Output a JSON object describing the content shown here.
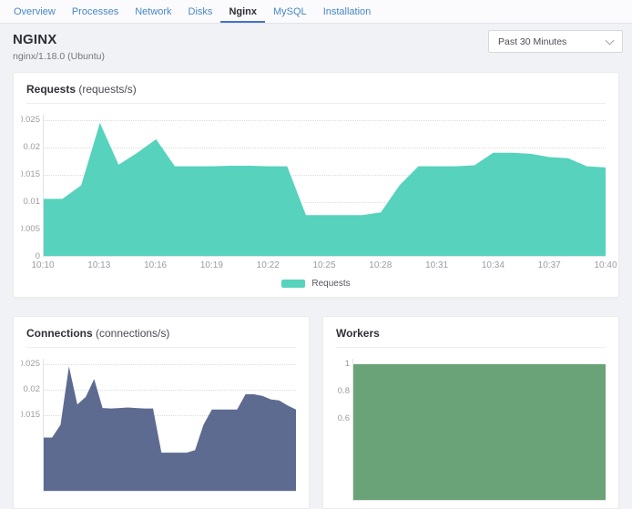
{
  "tabs": {
    "items": [
      {
        "label": "Overview",
        "active": false
      },
      {
        "label": "Processes",
        "active": false
      },
      {
        "label": "Network",
        "active": false
      },
      {
        "label": "Disks",
        "active": false
      },
      {
        "label": "Nginx",
        "active": true
      },
      {
        "label": "MySQL",
        "active": false
      },
      {
        "label": "Installation",
        "active": false
      }
    ]
  },
  "header": {
    "title": "NGINX",
    "subtitle": "nginx/1.18.0 (Ubuntu)",
    "time_range": "Past 30 Minutes"
  },
  "colors": {
    "requests_fill": "#57d2bd",
    "connections_fill": "#5d6b91",
    "workers_fill": "#6aa377",
    "tab_link": "#4787c7",
    "tab_active_underline": "#4273cc"
  },
  "chart_data": [
    {
      "type": "area",
      "title": "Requests",
      "subtitle": "(requests/s)",
      "color": "#57d2bd",
      "legend": [
        {
          "label": "Requests",
          "color": "#57d2bd"
        }
      ],
      "x_labels": [
        "10:10",
        "10:13",
        "10:16",
        "10:19",
        "10:22",
        "10:25",
        "10:28",
        "10:31",
        "10:34",
        "10:37",
        "10:40"
      ],
      "ylim": [
        0,
        0.026
      ],
      "yticks": [
        {
          "v": 0.025,
          "label": "0.025"
        },
        {
          "v": 0.02,
          "label": "0.02"
        },
        {
          "v": 0.015,
          "label": "0.015"
        },
        {
          "v": 0.01,
          "label": "0.01"
        },
        {
          "v": 0.005,
          "label": "0.005"
        },
        {
          "v": 0,
          "label": "0"
        }
      ],
      "x_start": "10:10",
      "x_end": "10:40",
      "interval_minutes": 1,
      "values": [
        0.0105,
        0.0105,
        0.013,
        0.0245,
        0.0168,
        0.019,
        0.0215,
        0.0165,
        0.0165,
        0.0165,
        0.0166,
        0.0166,
        0.0165,
        0.0165,
        0.0075,
        0.0075,
        0.0075,
        0.0075,
        0.008,
        0.013,
        0.0165,
        0.0165,
        0.0165,
        0.0167,
        0.019,
        0.019,
        0.0188,
        0.0182,
        0.018,
        0.0165,
        0.0163
      ]
    },
    {
      "type": "area",
      "title": "Connections",
      "subtitle": "(connections/s)",
      "color": "#5d6b91",
      "ylim": [
        0,
        0.026
      ],
      "yticks": [
        {
          "v": 0.025,
          "label": "0.025"
        },
        {
          "v": 0.02,
          "label": "0.02"
        },
        {
          "v": 0.015,
          "label": "0.015"
        }
      ],
      "x_start": "10:10",
      "x_end": "10:40",
      "interval_minutes": 1,
      "values": [
        0.0105,
        0.0105,
        0.013,
        0.0245,
        0.017,
        0.0185,
        0.022,
        0.0163,
        0.0162,
        0.0163,
        0.0164,
        0.0163,
        0.0162,
        0.0162,
        0.0075,
        0.0075,
        0.0075,
        0.0075,
        0.008,
        0.013,
        0.016,
        0.016,
        0.016,
        0.016,
        0.019,
        0.019,
        0.0187,
        0.018,
        0.0178,
        0.0168,
        0.016
      ]
    },
    {
      "type": "area",
      "title": "Workers",
      "color": "#6aa377",
      "ylim": [
        0,
        1.04
      ],
      "yticks": [
        {
          "v": 1,
          "label": "1"
        },
        {
          "v": 0.8,
          "label": "0.8"
        },
        {
          "v": 0.6,
          "label": "0.6"
        }
      ],
      "x_start": "10:10",
      "x_end": "10:40",
      "interval_minutes": 1,
      "values": [
        1,
        1,
        1,
        1,
        1,
        1,
        1,
        1,
        1,
        1,
        1,
        1,
        1,
        1,
        1,
        1,
        1,
        1,
        1,
        1,
        1,
        1,
        1,
        1,
        1,
        1,
        1,
        1,
        1,
        1,
        1
      ]
    }
  ]
}
